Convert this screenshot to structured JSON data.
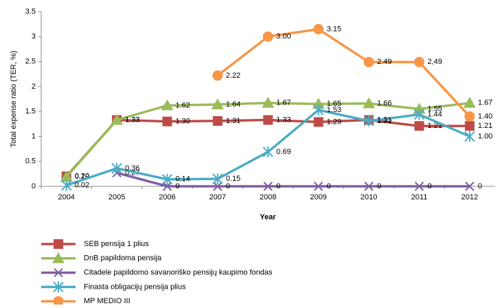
{
  "chart_data": {
    "type": "line",
    "x_label": "Year",
    "y_label": "Total expense ratio (TER, %)",
    "categories": [
      "2004",
      "2005",
      "2006",
      "2007",
      "2008",
      "2009",
      "2010",
      "2011",
      "2012"
    ],
    "ylim": [
      0,
      3.5
    ],
    "yticks": [
      0,
      0.5,
      1,
      1.5,
      2,
      2.5,
      3,
      3.5
    ],
    "grid": false,
    "legend": "bottom",
    "series": [
      {
        "name": "SEB pensija 1 plius",
        "color": "#be4b48",
        "marker": "square",
        "values": [
          0.2,
          1.33,
          1.3,
          1.31,
          1.33,
          1.29,
          1.33,
          1.21,
          1.21
        ],
        "value_labels": [
          "0.20",
          "1.33",
          "1.30",
          "1.31",
          "1.33",
          "1.29",
          "1.33",
          "1.21",
          "1.21"
        ]
      },
      {
        "name": "DnB papildoma pensija",
        "color": "#9bbb59",
        "marker": "triangle",
        "values": [
          0.19,
          1.33,
          1.62,
          1.64,
          1.67,
          1.65,
          1.66,
          1.55,
          1.67
        ],
        "value_labels": [
          "0.19",
          "1.33",
          "1.62",
          "1.64",
          "1.67",
          "1.65",
          "1.66",
          "1.55",
          "1.67"
        ]
      },
      {
        "name": "Citadele papildomo savanoriško pensijų kaupimo fondas",
        "color": "#7f5fa0",
        "marker": "x",
        "values": [
          null,
          0.27,
          0,
          0,
          0,
          0,
          0,
          0,
          0
        ],
        "value_labels": [
          null,
          "0.27",
          "0",
          "0",
          "0",
          "0",
          "0",
          "0",
          "0"
        ]
      },
      {
        "name": "Finasta obligacijų pensija plius",
        "color": "#4bacc6",
        "marker": "star",
        "values": [
          0.02,
          0.36,
          0.14,
          0.15,
          0.69,
          1.53,
          1.31,
          1.44,
          1.0
        ],
        "value_labels": [
          "0.02",
          "0.36",
          "0.14",
          "0.15",
          "0.69",
          "1.53",
          "1.31",
          "1.44",
          "1.00"
        ]
      },
      {
        "name": "MP MEDIO III",
        "color": "#f79646",
        "marker": "circle",
        "values": [
          null,
          null,
          null,
          2.22,
          3.0,
          3.15,
          2.49,
          2.49,
          1.4
        ],
        "value_labels": [
          null,
          null,
          null,
          "2.22",
          "3.00",
          "3.15",
          "2.49",
          "2,49",
          "1.40"
        ]
      }
    ]
  }
}
